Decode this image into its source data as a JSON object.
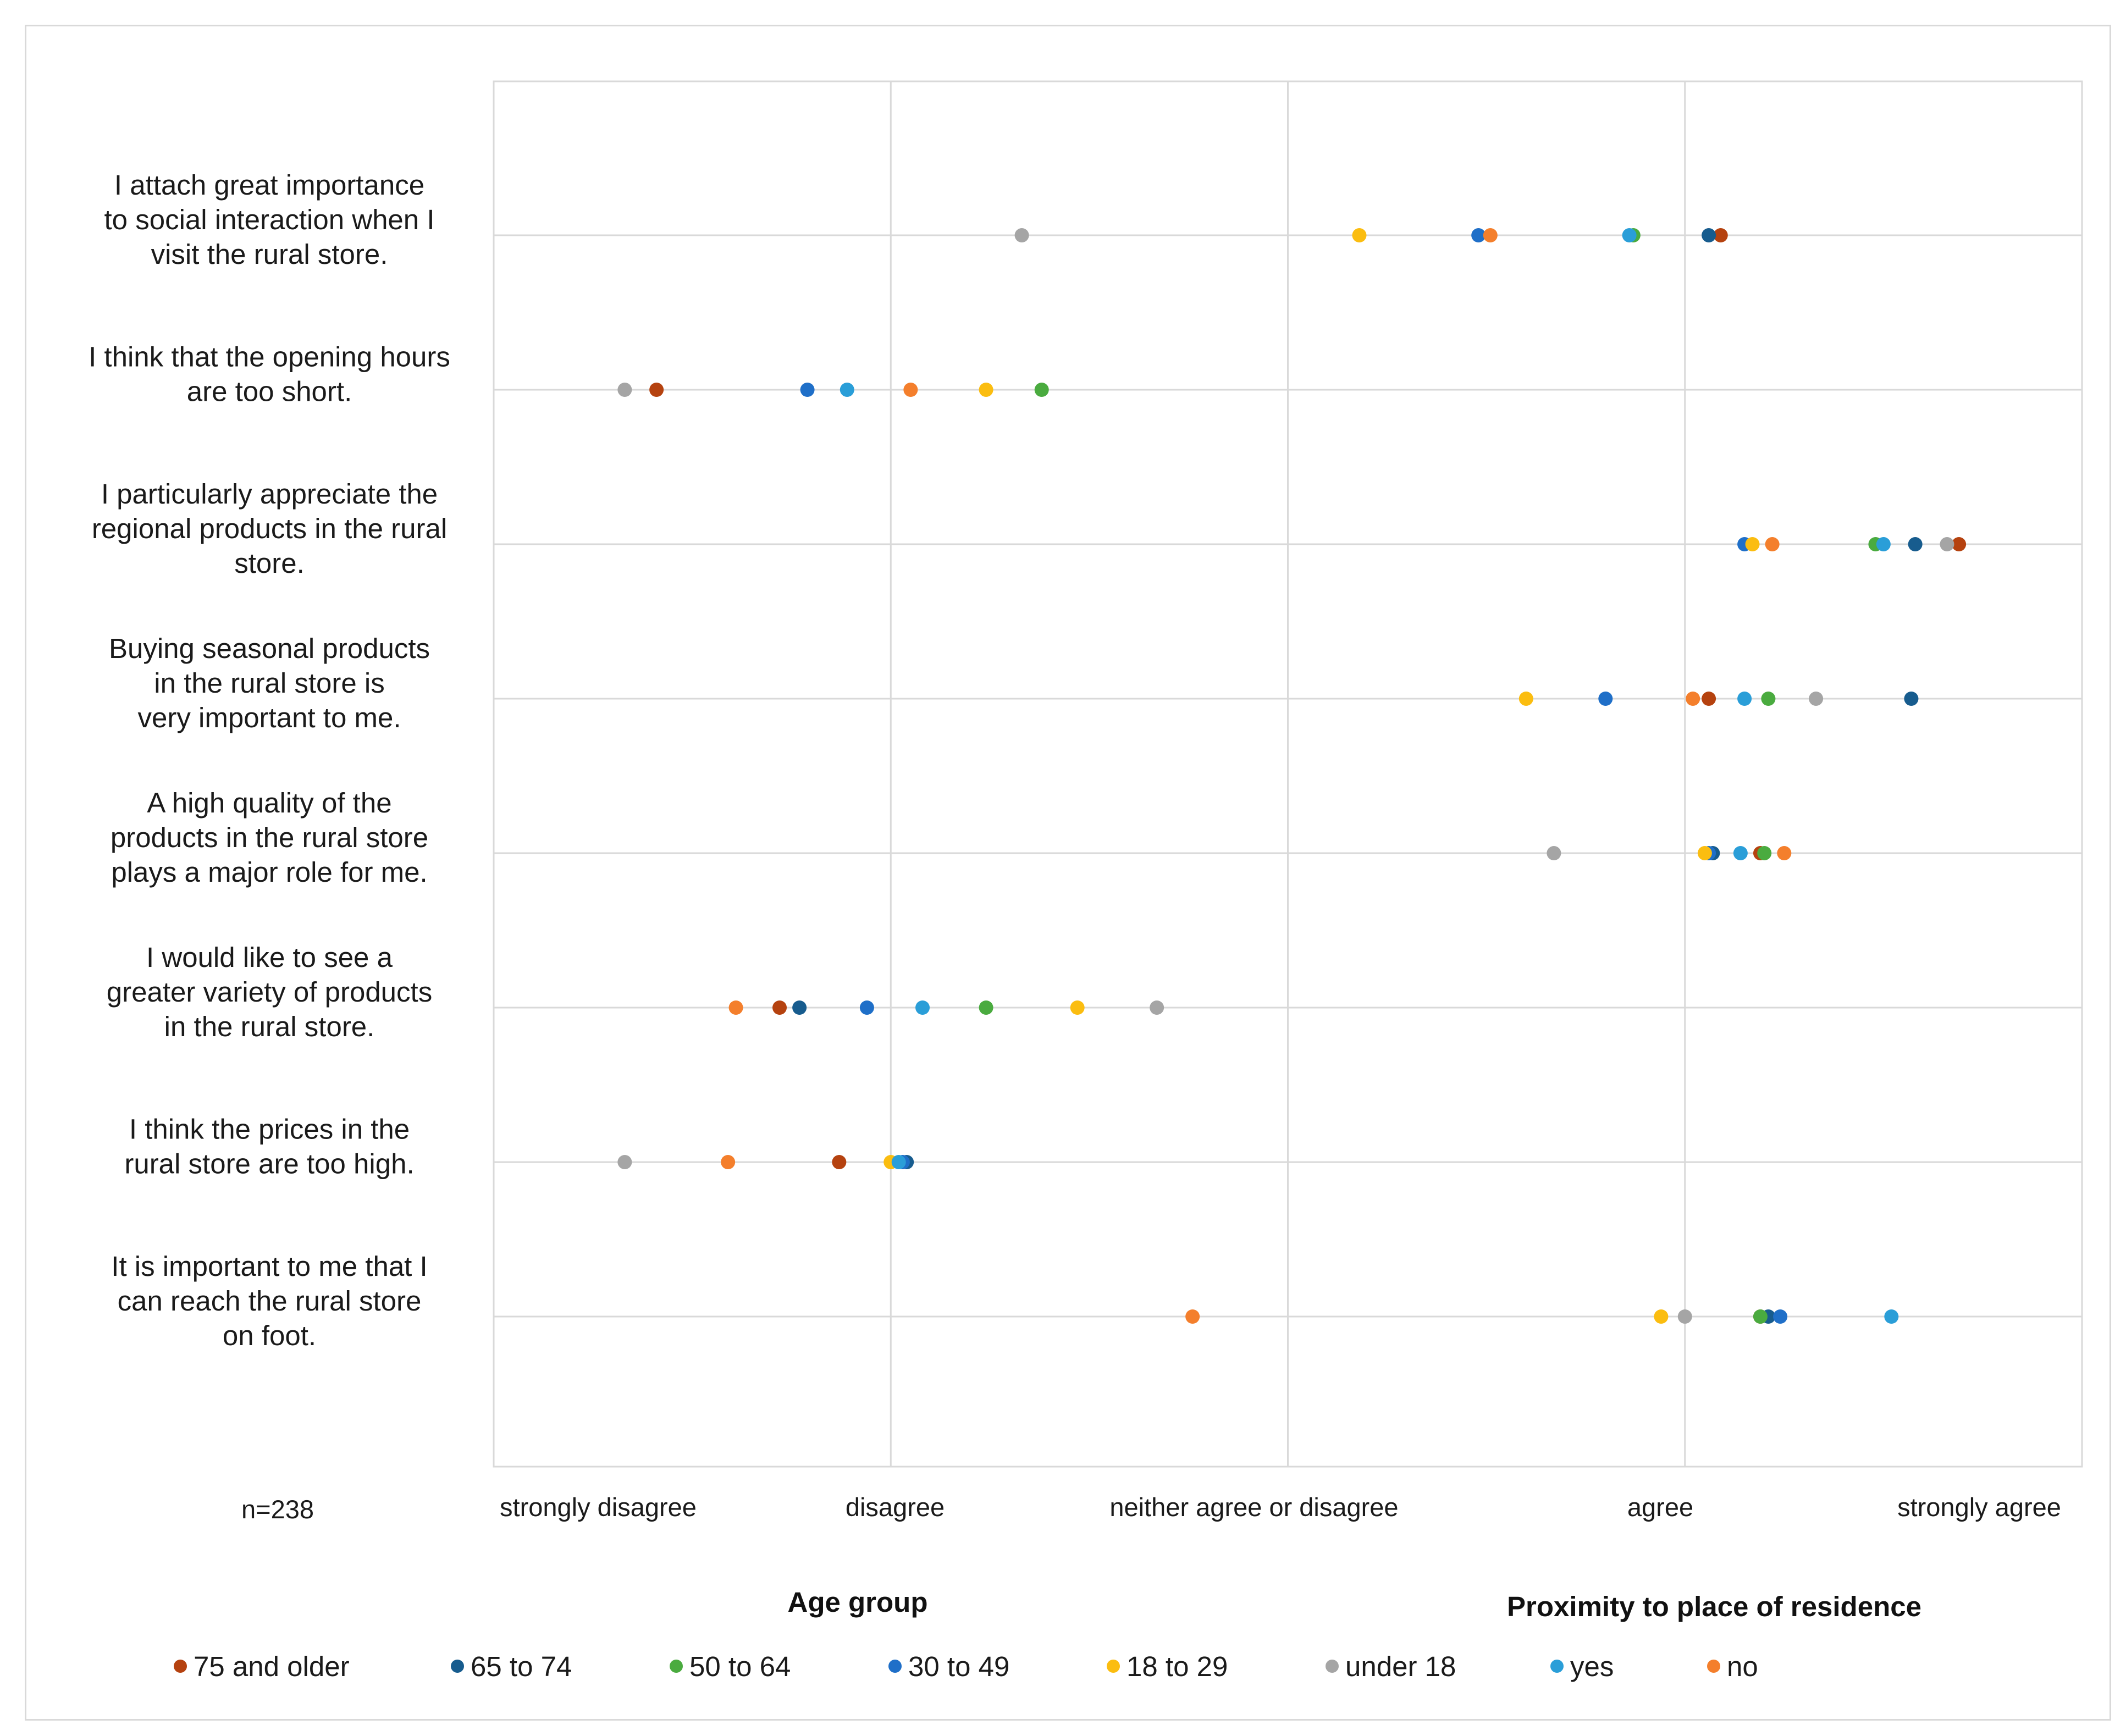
{
  "chart_data": {
    "type": "scatter",
    "note": "n=238",
    "x_ticks": [
      "strongly disagree",
      "disagree",
      "neither agree or disagree",
      "agree",
      "strongly agree"
    ],
    "xlim": [
      1,
      5
    ],
    "statements": [
      [
        "I attach great importance",
        "to social interaction when I",
        "visit the rural store."
      ],
      [
        "I think that the opening hours",
        "are too short."
      ],
      [
        "I particularly appreciate the",
        "regional products in the rural",
        "store."
      ],
      [
        "Buying seasonal products",
        "in the rural store is",
        "very important to me."
      ],
      [
        "A high quality of the",
        "products in the rural store",
        "plays a major role for me."
      ],
      [
        "I would like to see a",
        "greater variety of products",
        "in the rural store."
      ],
      [
        "I think the prices in the",
        "rural store are too high."
      ],
      [
        "It is important to me that I",
        "can reach the rural store",
        "on foot."
      ]
    ],
    "legend_groups": [
      {
        "title": "Age group",
        "series": [
          "75 and older",
          "65 to 74",
          "50 to 64",
          "30 to 49",
          "18 to 29",
          "under 18"
        ]
      },
      {
        "title": "Proximity to place of residence",
        "series": [
          "yes",
          "no"
        ]
      }
    ],
    "series": [
      {
        "name": "75 and older",
        "color": "#b5420f",
        "values": [
          4.09,
          1.41,
          4.69,
          4.06,
          4.19,
          1.72,
          1.87,
          4.19
        ]
      },
      {
        "name": "65 to 74",
        "color": "#175c8e",
        "values": [
          4.06,
          null,
          4.58,
          4.57,
          4.07,
          1.77,
          2.04,
          4.21
        ]
      },
      {
        "name": "50 to 64",
        "color": "#4aab3f",
        "values": [
          3.87,
          2.38,
          4.48,
          4.21,
          4.2,
          2.24,
          null,
          4.19
        ]
      },
      {
        "name": "30 to 49",
        "color": "#1f6fc8",
        "values": [
          3.48,
          1.79,
          4.15,
          3.8,
          4.06,
          1.94,
          2.03,
          4.24
        ]
      },
      {
        "name": "18 to 29",
        "color": "#fbbd10",
        "values": [
          3.18,
          2.24,
          4.17,
          3.6,
          4.05,
          2.47,
          2.0,
          3.94
        ]
      },
      {
        "name": "under 18",
        "color": "#a5a5a5",
        "values": [
          2.33,
          1.33,
          4.66,
          4.33,
          3.67,
          2.67,
          1.33,
          4.0
        ]
      },
      {
        "name": "yes",
        "color": "#2a9ed8",
        "values": [
          3.86,
          1.89,
          4.5,
          4.15,
          4.14,
          2.08,
          2.02,
          4.52
        ]
      },
      {
        "name": "no",
        "color": "#f47f2c",
        "values": [
          3.51,
          2.05,
          4.22,
          4.02,
          4.25,
          1.61,
          1.59,
          2.76
        ]
      }
    ]
  }
}
